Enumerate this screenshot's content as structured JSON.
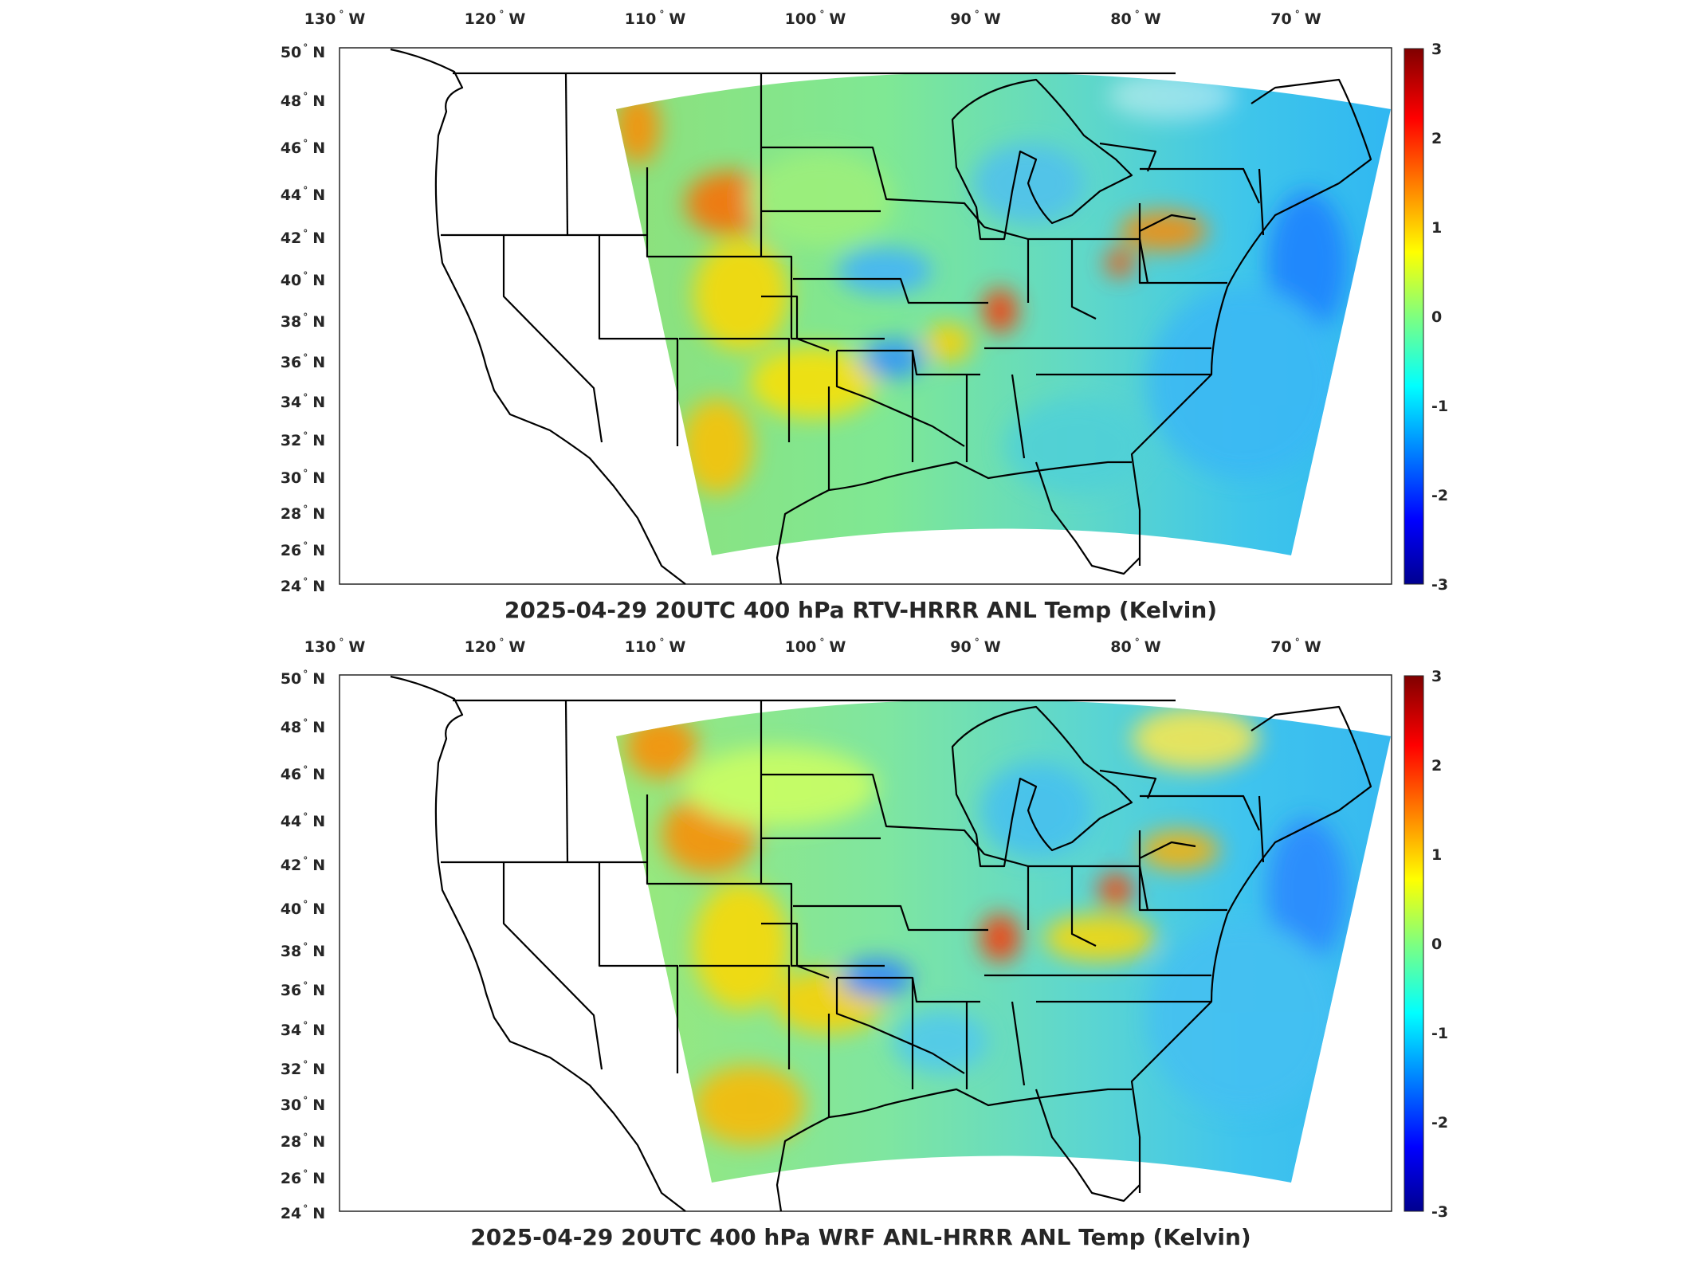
{
  "panels": [
    {
      "title": "2025-04-29 20UTC 400 hPa RTV-HRRR ANL Temp (Kelvin)",
      "lon_ticks": [
        "130",
        "120",
        "110",
        "100",
        "90",
        "80",
        "70"
      ],
      "lon_suffix": "W",
      "lat_ticks": [
        "50",
        "48",
        "46",
        "44",
        "42",
        "40",
        "38",
        "36",
        "34",
        "32",
        "30",
        "28",
        "26",
        "24"
      ],
      "lat_suffix": "N",
      "colorbar_ticks": [
        "3",
        "2",
        "1",
        "0",
        "-1",
        "-2",
        "-3"
      ],
      "variant": "rtv"
    },
    {
      "title": "2025-04-29 20UTC 400 hPa WRF ANL-HRRR ANL Temp (Kelvin)",
      "lon_ticks": [
        "130",
        "120",
        "110",
        "100",
        "90",
        "80",
        "70"
      ],
      "lon_suffix": "W",
      "lat_ticks": [
        "50",
        "48",
        "46",
        "44",
        "42",
        "40",
        "38",
        "36",
        "34",
        "32",
        "30",
        "28",
        "26",
        "24"
      ],
      "lat_suffix": "N",
      "colorbar_ticks": [
        "3",
        "2",
        "1",
        "0",
        "-1",
        "-2",
        "-3"
      ],
      "variant": "wrf"
    }
  ],
  "colormap": "jet",
  "colorbar_range": [
    -3,
    3
  ]
}
